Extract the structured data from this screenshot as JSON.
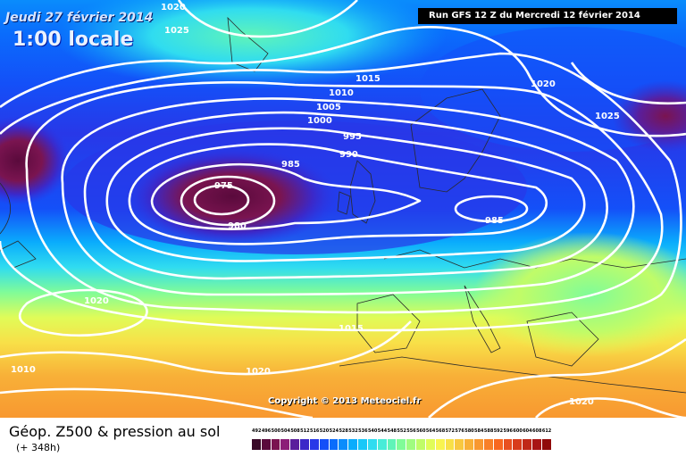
{
  "header": {
    "date_text": "Jeudi 27 février 2014",
    "time_text": "1:00 locale",
    "run_text": "Run GFS 12 Z du Mercredi 12 février 2014",
    "copyright": "Copyright © 2013 Meteociel.fr"
  },
  "footer": {
    "title": "Géop. Z500 & pression au sol",
    "subtitle": "(+ 348h)"
  },
  "legend": {
    "values": [
      "492",
      "496",
      "500",
      "504",
      "508",
      "512",
      "516",
      "520",
      "524",
      "528",
      "532",
      "536",
      "540",
      "544",
      "548",
      "552",
      "556",
      "560",
      "564",
      "568",
      "572",
      "576",
      "580",
      "584",
      "588",
      "592",
      "596",
      "600",
      "604",
      "608",
      "612"
    ],
    "colors": [
      "#3a0a28",
      "#5a0a3c",
      "#7a1450",
      "#8c1e78",
      "#5a1e9c",
      "#3c28c8",
      "#2838e8",
      "#1450f8",
      "#0a6cfc",
      "#0a8cfc",
      "#0aacfc",
      "#18c8f8",
      "#30dcf0",
      "#48ecd8",
      "#60f4b8",
      "#80fc98",
      "#a0fc80",
      "#c0fc68",
      "#e0fc58",
      "#f8f450",
      "#f8e048",
      "#f8c840",
      "#f8b038",
      "#f89830",
      "#f88028",
      "#f86820",
      "#e85020",
      "#d83c1c",
      "#c02818",
      "#a81414",
      "#900a0a"
    ]
  },
  "pressure_labels": [
    {
      "id": "p1020-nw",
      "text": "1020"
    },
    {
      "id": "p1025-nw",
      "text": "1025"
    },
    {
      "id": "p1015-n",
      "text": "1015"
    },
    {
      "id": "p1010-n",
      "text": "1010"
    },
    {
      "id": "p1005-n",
      "text": "1005"
    },
    {
      "id": "p1000-n",
      "text": "1000"
    },
    {
      "id": "p995-c",
      "text": "995"
    },
    {
      "id": "p990-c",
      "text": "990"
    },
    {
      "id": "p985-w",
      "text": "985"
    },
    {
      "id": "p975-low",
      "text": "975"
    },
    {
      "id": "p980-low",
      "text": "980"
    },
    {
      "id": "p985-e",
      "text": "985"
    },
    {
      "id": "p1020-ne",
      "text": "1020"
    },
    {
      "id": "p1025-ne",
      "text": "1025"
    },
    {
      "id": "p1020-w",
      "text": "1020"
    },
    {
      "id": "p1015-s",
      "text": "1015"
    },
    {
      "id": "p1010-sw",
      "text": "1010"
    },
    {
      "id": "p1020-s",
      "text": "1020"
    },
    {
      "id": "p1020-se",
      "text": "1020"
    }
  ]
}
